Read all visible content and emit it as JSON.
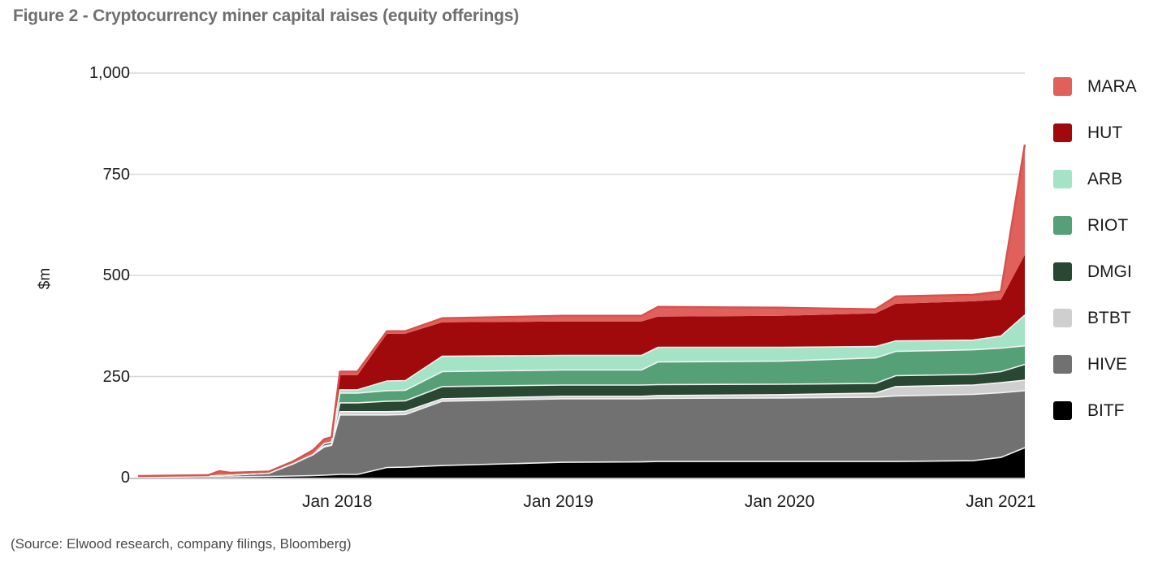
{
  "page": {
    "title": "Figure 2 - Cryptocurrency miner capital raises (equity offerings)",
    "source": "(Source: Elwood research, company filings, Bloomberg)"
  },
  "chart_data": {
    "type": "area",
    "stacked": true,
    "title": "Figure 2 - Cryptocurrency miner capital raises (equity offerings)",
    "xlabel": "",
    "ylabel": "$m",
    "ylim": [
      0,
      1000
    ],
    "grid": "horizontal",
    "legend_position": "right",
    "yticks": [
      {
        "value": 1000,
        "label": "1,000"
      },
      {
        "value": 750,
        "label": "750"
      },
      {
        "value": 500,
        "label": "500"
      },
      {
        "value": 250,
        "label": "250"
      },
      {
        "value": 0,
        "label": "0"
      }
    ],
    "x_axis": {
      "unit": "months_since_jan_2018",
      "range": [
        -10.8,
        37.3
      ]
    },
    "xticks": [
      {
        "month": 0,
        "label": "Jan 2018"
      },
      {
        "month": 12,
        "label": "Jan 2019"
      },
      {
        "month": 24,
        "label": "Jan 2020"
      },
      {
        "month": 36,
        "label": "Jan 2021"
      }
    ],
    "x": [
      -10.8,
      -7.0,
      -6.4,
      -5.8,
      -3.7,
      -2.4,
      -1.3,
      -0.7,
      -0.3,
      0.15,
      1.1,
      2.7,
      3.7,
      5.7,
      12.2,
      16.5,
      17.4,
      24.0,
      29.2,
      30.3,
      34.5,
      36.0,
      37.3
    ],
    "series": [
      {
        "name": "BITF",
        "color": "#000000",
        "edge": "#f2f2f2",
        "values": [
          1,
          2,
          2,
          2,
          3,
          4,
          5,
          6,
          7,
          8,
          8,
          25,
          26,
          30,
          38,
          39,
          40,
          40,
          40,
          40,
          42,
          50,
          74
        ]
      },
      {
        "name": "HIVE",
        "color": "#717171",
        "edge": "#f2f2f2",
        "values": [
          1,
          2,
          3,
          4,
          8,
          30,
          52,
          70,
          73,
          147,
          147,
          130,
          130,
          159,
          157,
          156,
          156,
          157,
          159,
          162,
          164,
          160,
          141
        ]
      },
      {
        "name": "BTBT",
        "color": "#cfcfcf",
        "edge": "#f7f7f7",
        "values": [
          0,
          0,
          0,
          0,
          0,
          0,
          0,
          2,
          2,
          8,
          8,
          8,
          8,
          6,
          6,
          6,
          7,
          8,
          10,
          23,
          23,
          25,
          26
        ]
      },
      {
        "name": "DMGI",
        "color": "#294733",
        "edge": "#f2f2f2",
        "values": [
          0,
          0,
          0,
          0,
          0,
          0,
          0,
          6,
          6,
          22,
          22,
          26,
          26,
          30,
          28,
          28,
          27,
          26,
          24,
          27,
          26,
          27,
          39
        ]
      },
      {
        "name": "RIOT",
        "color": "#55a077",
        "edge": "#f2f2f2",
        "values": [
          0,
          0,
          0,
          0,
          0,
          0,
          0,
          0,
          0,
          24,
          24,
          26,
          26,
          37,
          37,
          37,
          56,
          57,
          63,
          60,
          61,
          58,
          46
        ]
      },
      {
        "name": "ARB",
        "color": "#a5e3c6",
        "edge": "#f2f2f2",
        "values": [
          0,
          0,
          0,
          0,
          0,
          0,
          0,
          0,
          0,
          8,
          8,
          24,
          24,
          38,
          36,
          36,
          36,
          34,
          28,
          26,
          24,
          30,
          76
        ]
      },
      {
        "name": "HUT",
        "color": "#a10a0c",
        "edge": null,
        "values": [
          0,
          0,
          0,
          0,
          0,
          0,
          0,
          0,
          2,
          36,
          36,
          117,
          116,
          84,
          84,
          84,
          76,
          78,
          82,
          92,
          96,
          90,
          149
        ]
      },
      {
        "name": "MARA",
        "color": "#e0615c",
        "edge": "#d4534e",
        "values": [
          2,
          2,
          11,
          6,
          4,
          6,
          11,
          11,
          10,
          9,
          9,
          6,
          6,
          10,
          14,
          14,
          24,
          20,
          10,
          18,
          16,
          20,
          272
        ]
      }
    ],
    "legend": [
      "MARA",
      "HUT",
      "ARB",
      "RIOT",
      "DMGI",
      "BTBT",
      "HIVE",
      "BITF"
    ]
  }
}
